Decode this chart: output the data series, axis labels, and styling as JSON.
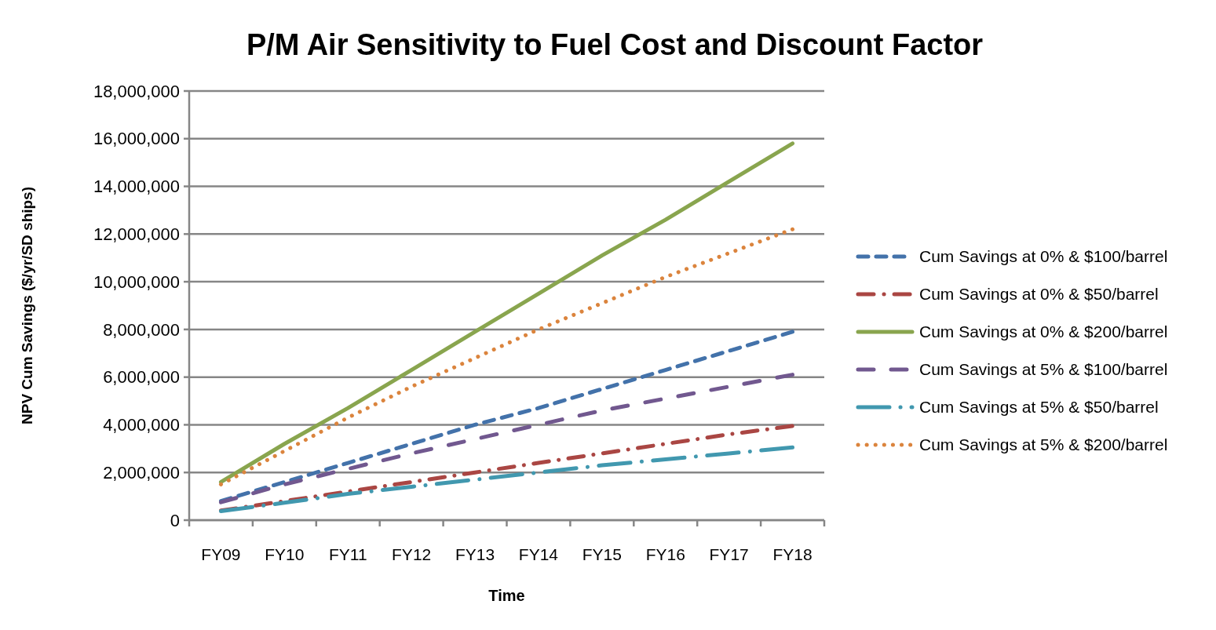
{
  "chart_data": {
    "type": "line",
    "title": "P/M Air Sensitivity to Fuel Cost and Discount Factor",
    "xlabel": "Time",
    "ylabel": "NPV Cum Savings ($/yr/SD ships)",
    "categories": [
      "FY09",
      "FY10",
      "FY11",
      "FY12",
      "FY13",
      "FY14",
      "FY15",
      "FY16",
      "FY17",
      "FY18"
    ],
    "ylim": [
      0,
      18000000
    ],
    "yticks": [
      {
        "value": 0,
        "label": "0"
      },
      {
        "value": 2000000,
        "label": "2,000,000"
      },
      {
        "value": 4000000,
        "label": "4,000,000"
      },
      {
        "value": 6000000,
        "label": "6,000,000"
      },
      {
        "value": 8000000,
        "label": "8,000,000"
      },
      {
        "value": 10000000,
        "label": "10,000,000"
      },
      {
        "value": 12000000,
        "label": "12,000,000"
      },
      {
        "value": 14000000,
        "label": "14,000,000"
      },
      {
        "value": 16000000,
        "label": "16,000,000"
      },
      {
        "value": 18000000,
        "label": "18,000,000"
      }
    ],
    "grid": "y",
    "legend": "right",
    "marker": "none",
    "series": [
      {
        "name": "Cum Savings at 0% & $100/barrel",
        "color": "#4372aa",
        "line_style": "dashed",
        "values": [
          800000,
          1600000,
          2400000,
          3200000,
          4000000,
          4700000,
          5500000,
          6300000,
          7100000,
          7900000
        ]
      },
      {
        "name": "Cum Savings at 0% & $50/barrel",
        "color": "#aa4643",
        "line_style": "dashdot",
        "values": [
          400000,
          800000,
          1200000,
          1600000,
          2000000,
          2400000,
          2800000,
          3200000,
          3600000,
          3950000
        ]
      },
      {
        "name": "Cum Savings at 0% & $200/barrel",
        "color": "#89a54e",
        "line_style": "solid",
        "values": [
          1600000,
          3200000,
          4700000,
          6300000,
          7900000,
          9500000,
          11100000,
          12600000,
          14200000,
          15800000
        ]
      },
      {
        "name": "Cum Savings at 5% & $100/barrel",
        "color": "#71588f",
        "line_style": "longdash",
        "values": [
          750000,
          1500000,
          2150000,
          2800000,
          3400000,
          4000000,
          4600000,
          5100000,
          5600000,
          6100000
        ]
      },
      {
        "name": "Cum Savings at 5% & $50/barrel",
        "color": "#4198af",
        "line_style": "longdashdot",
        "values": [
          380000,
          730000,
          1100000,
          1400000,
          1700000,
          2000000,
          2300000,
          2550000,
          2800000,
          3050000
        ]
      },
      {
        "name": "Cum Savings at 5% & $200/barrel",
        "color": "#db843d",
        "line_style": "dotted",
        "values": [
          1500000,
          2900000,
          4300000,
          5600000,
          6800000,
          8000000,
          9100000,
          10200000,
          11200000,
          12200000
        ]
      }
    ]
  }
}
